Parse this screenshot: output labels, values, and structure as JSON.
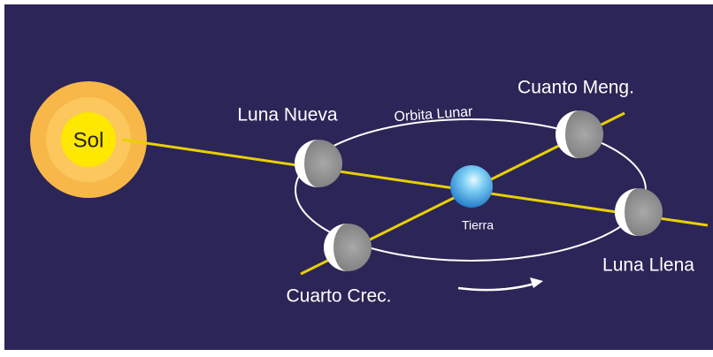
{
  "sun": {
    "label": "Sol"
  },
  "earth": {
    "label": "Tierra"
  },
  "orbit": {
    "label": "Orbita Lunar"
  },
  "phases": [
    {
      "label": "Luna Nueva"
    },
    {
      "label": "Cuanto Meng."
    },
    {
      "label": "Luna Llena"
    },
    {
      "label": "Cuarto Crec."
    }
  ]
}
